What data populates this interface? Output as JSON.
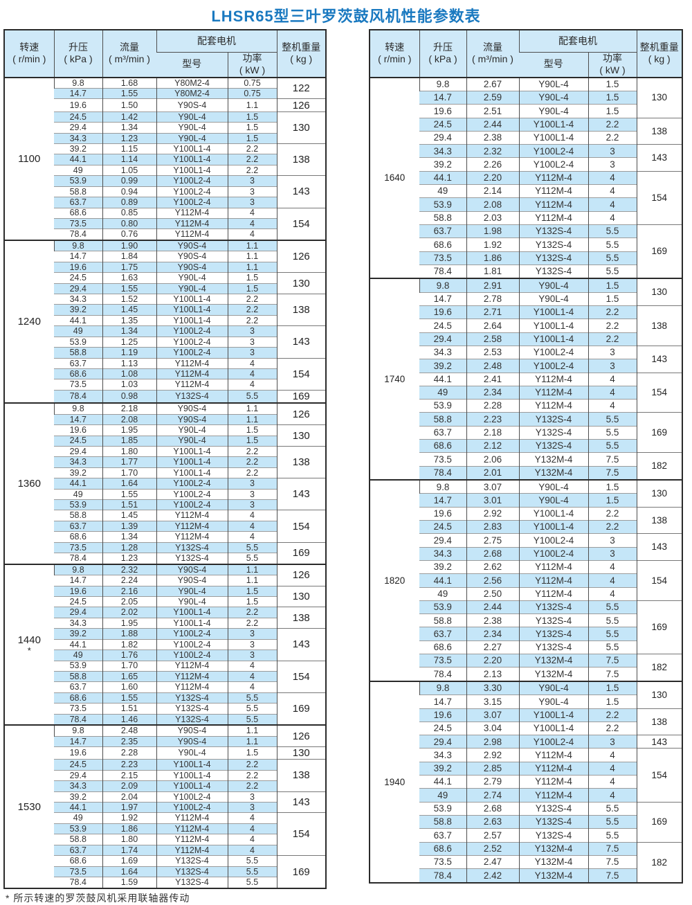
{
  "title": "LHSR65型三叶罗茨鼓风机性能参数表",
  "footnote": "* 所示转速的罗茨鼓风机采用联轴器传动",
  "colors": {
    "title_blue": "#1a79c0",
    "header_bg": "#cfe9f8",
    "row_alt_bg": "#c5e6f8"
  },
  "columns": {
    "speed_label": "转速",
    "speed_unit": "( r/min )",
    "pressure_label": "升压",
    "pressure_unit": "( kPa )",
    "flow_label": "流量",
    "flow_unit": "( m³/min )",
    "motor_group_label": "配套电机",
    "model_label": "型号",
    "power_label": "功率",
    "power_unit": "( kW )",
    "weight_label": "整机重量",
    "weight_unit": "( kg )"
  },
  "left_table": {
    "blocks": [
      {
        "speed": "1100",
        "note": "",
        "rows": [
          [
            "9.8",
            "1.68",
            "Y80M2-4",
            "0.75"
          ],
          [
            "14.7",
            "1.55",
            "Y80M2-4",
            "0.75"
          ],
          [
            "19.6",
            "1.50",
            "Y90S-4",
            "1.1"
          ],
          [
            "24.5",
            "1.42",
            "Y90L-4",
            "1.5"
          ],
          [
            "29.4",
            "1.34",
            "Y90L-4",
            "1.5"
          ],
          [
            "34.3",
            "1.23",
            "Y90L-4",
            "1.5"
          ],
          [
            "39.2",
            "1.15",
            "Y100L1-4",
            "2.2"
          ],
          [
            "44.1",
            "1.14",
            "Y100L1-4",
            "2.2"
          ],
          [
            "49",
            "1.05",
            "Y100L1-4",
            "2.2"
          ],
          [
            "53.9",
            "0.99",
            "Y100L2-4",
            "3"
          ],
          [
            "58.8",
            "0.94",
            "Y100L2-4",
            "3"
          ],
          [
            "63.7",
            "0.89",
            "Y100L2-4",
            "3"
          ],
          [
            "68.6",
            "0.85",
            "Y112M-4",
            "4"
          ],
          [
            "73.5",
            "0.80",
            "Y112M-4",
            "4"
          ],
          [
            "78.4",
            "0.76",
            "Y112M-4",
            "4"
          ]
        ],
        "weights": [
          [
            "122",
            2
          ],
          [
            "126",
            1
          ],
          [
            "130",
            3
          ],
          [
            "138",
            3
          ],
          [
            "143",
            3
          ],
          [
            "154",
            3
          ]
        ]
      },
      {
        "speed": "1240",
        "note": "",
        "rows": [
          [
            "9.8",
            "1.90",
            "Y90S-4",
            "1.1"
          ],
          [
            "14.7",
            "1.84",
            "Y90S-4",
            "1.1"
          ],
          [
            "19.6",
            "1.75",
            "Y90S-4",
            "1.1"
          ],
          [
            "24.5",
            "1.63",
            "Y90L-4",
            "1.5"
          ],
          [
            "29.4",
            "1.55",
            "Y90L-4",
            "1.5"
          ],
          [
            "34.3",
            "1.52",
            "Y100L1-4",
            "2.2"
          ],
          [
            "39.2",
            "1.45",
            "Y100L1-4",
            "2.2"
          ],
          [
            "44.1",
            "1.35",
            "Y100L1-4",
            "2.2"
          ],
          [
            "49",
            "1.34",
            "Y100L2-4",
            "3"
          ],
          [
            "53.9",
            "1.25",
            "Y100L2-4",
            "3"
          ],
          [
            "58.8",
            "1.19",
            "Y100L2-4",
            "3"
          ],
          [
            "63.7",
            "1.13",
            "Y112M-4",
            "4"
          ],
          [
            "68.6",
            "1.08",
            "Y112M-4",
            "4"
          ],
          [
            "73.5",
            "1.03",
            "Y112M-4",
            "4"
          ],
          [
            "78.4",
            "0.98",
            "Y132S-4",
            "5.5"
          ]
        ],
        "weights": [
          [
            "126",
            3
          ],
          [
            "130",
            2
          ],
          [
            "138",
            3
          ],
          [
            "143",
            3
          ],
          [
            "154",
            3
          ],
          [
            "169",
            1
          ]
        ]
      },
      {
        "speed": "1360",
        "note": "",
        "rows": [
          [
            "9.8",
            "2.18",
            "Y90S-4",
            "1.1"
          ],
          [
            "14.7",
            "2.08",
            "Y90S-4",
            "1.1"
          ],
          [
            "19.6",
            "1.95",
            "Y90L-4",
            "1.5"
          ],
          [
            "24.5",
            "1.85",
            "Y90L-4",
            "1.5"
          ],
          [
            "29.4",
            "1.80",
            "Y100L1-4",
            "2.2"
          ],
          [
            "34.3",
            "1.77",
            "Y100L1-4",
            "2.2"
          ],
          [
            "39.2",
            "1.70",
            "Y100L1-4",
            "2.2"
          ],
          [
            "44.1",
            "1.64",
            "Y100L2-4",
            "3"
          ],
          [
            "49",
            "1.55",
            "Y100L2-4",
            "3"
          ],
          [
            "53.9",
            "1.51",
            "Y100L2-4",
            "3"
          ],
          [
            "58.8",
            "1.45",
            "Y112M-4",
            "4"
          ],
          [
            "63.7",
            "1.39",
            "Y112M-4",
            "4"
          ],
          [
            "68.6",
            "1.34",
            "Y112M-4",
            "4"
          ],
          [
            "73.5",
            "1.28",
            "Y132S-4",
            "5.5"
          ],
          [
            "78.4",
            "1.23",
            "Y132S-4",
            "5.5"
          ]
        ],
        "weights": [
          [
            "126",
            2
          ],
          [
            "130",
            2
          ],
          [
            "138",
            3
          ],
          [
            "143",
            3
          ],
          [
            "154",
            3
          ],
          [
            "169",
            2
          ]
        ]
      },
      {
        "speed": "1440",
        "note": "*",
        "rows": [
          [
            "9.8",
            "2.32",
            "Y90S-4",
            "1.1"
          ],
          [
            "14.7",
            "2.24",
            "Y90S-4",
            "1.1"
          ],
          [
            "19.6",
            "2.16",
            "Y90L-4",
            "1.5"
          ],
          [
            "24.5",
            "2.05",
            "Y90L-4",
            "1.5"
          ],
          [
            "29.4",
            "2.02",
            "Y100L1-4",
            "2.2"
          ],
          [
            "34.3",
            "1.95",
            "Y100L1-4",
            "2.2"
          ],
          [
            "39.2",
            "1.88",
            "Y100L2-4",
            "3"
          ],
          [
            "44.1",
            "1.82",
            "Y100L2-4",
            "3"
          ],
          [
            "49",
            "1.76",
            "Y100L2-4",
            "3"
          ],
          [
            "53.9",
            "1.70",
            "Y112M-4",
            "4"
          ],
          [
            "58.8",
            "1.65",
            "Y112M-4",
            "4"
          ],
          [
            "63.7",
            "1.60",
            "Y112M-4",
            "4"
          ],
          [
            "68.6",
            "1.55",
            "Y132S-4",
            "5.5"
          ],
          [
            "73.5",
            "1.51",
            "Y132S-4",
            "5.5"
          ],
          [
            "78.4",
            "1.46",
            "Y132S-4",
            "5.5"
          ]
        ],
        "weights": [
          [
            "126",
            2
          ],
          [
            "130",
            2
          ],
          [
            "138",
            2
          ],
          [
            "143",
            3
          ],
          [
            "154",
            3
          ],
          [
            "169",
            3
          ]
        ]
      },
      {
        "speed": "1530",
        "note": "",
        "rows": [
          [
            "9.8",
            "2.48",
            "Y90S-4",
            "1.1"
          ],
          [
            "14.7",
            "2.35",
            "Y90S-4",
            "1.1"
          ],
          [
            "19.6",
            "2.28",
            "Y90L-4",
            "1.5"
          ],
          [
            "24.5",
            "2.23",
            "Y100L1-4",
            "2.2"
          ],
          [
            "29.4",
            "2.15",
            "Y100L1-4",
            "2.2"
          ],
          [
            "34.3",
            "2.09",
            "Y100L1-4",
            "2.2"
          ],
          [
            "39.2",
            "2.04",
            "Y100L2-4",
            "3"
          ],
          [
            "44.1",
            "1.97",
            "Y100L2-4",
            "3"
          ],
          [
            "49",
            "1.92",
            "Y112M-4",
            "4"
          ],
          [
            "53.9",
            "1.86",
            "Y112M-4",
            "4"
          ],
          [
            "58.8",
            "1.80",
            "Y112M-4",
            "4"
          ],
          [
            "63.7",
            "1.74",
            "Y112M-4",
            "4"
          ],
          [
            "68.6",
            "1.69",
            "Y132S-4",
            "5.5"
          ],
          [
            "73.5",
            "1.64",
            "Y132S-4",
            "5.5"
          ],
          [
            "78.4",
            "1.59",
            "Y132S-4",
            "5.5"
          ]
        ],
        "weights": [
          [
            "126",
            2
          ],
          [
            "130",
            1
          ],
          [
            "138",
            3
          ],
          [
            "143",
            2
          ],
          [
            "154",
            4
          ],
          [
            "169",
            3
          ]
        ]
      }
    ]
  },
  "right_table": {
    "blocks": [
      {
        "speed": "1640",
        "note": "",
        "rows": [
          [
            "9.8",
            "2.67",
            "Y90L-4",
            "1.5"
          ],
          [
            "14.7",
            "2.59",
            "Y90L-4",
            "1.5"
          ],
          [
            "19.6",
            "2.51",
            "Y90L-4",
            "1.5"
          ],
          [
            "24.5",
            "2.44",
            "Y100L1-4",
            "2.2"
          ],
          [
            "29.4",
            "2.38",
            "Y100L1-4",
            "2.2"
          ],
          [
            "34.3",
            "2.32",
            "Y100L2-4",
            "3"
          ],
          [
            "39.2",
            "2.26",
            "Y100L2-4",
            "3"
          ],
          [
            "44.1",
            "2.20",
            "Y112M-4",
            "4"
          ],
          [
            "49",
            "2.14",
            "Y112M-4",
            "4"
          ],
          [
            "53.9",
            "2.08",
            "Y112M-4",
            "4"
          ],
          [
            "58.8",
            "2.03",
            "Y112M-4",
            "4"
          ],
          [
            "63.7",
            "1.98",
            "Y132S-4",
            "5.5"
          ],
          [
            "68.6",
            "1.92",
            "Y132S-4",
            "5.5"
          ],
          [
            "73.5",
            "1.86",
            "Y132S-4",
            "5.5"
          ],
          [
            "78.4",
            "1.81",
            "Y132S-4",
            "5.5"
          ]
        ],
        "weights": [
          [
            "130",
            3
          ],
          [
            "138",
            2
          ],
          [
            "143",
            2
          ],
          [
            "154",
            4
          ],
          [
            "169",
            4
          ]
        ]
      },
      {
        "speed": "1740",
        "note": "",
        "rows": [
          [
            "9.8",
            "2.91",
            "Y90L-4",
            "1.5"
          ],
          [
            "14.7",
            "2.78",
            "Y90L-4",
            "1.5"
          ],
          [
            "19.6",
            "2.71",
            "Y100L1-4",
            "2.2"
          ],
          [
            "24.5",
            "2.64",
            "Y100L1-4",
            "2.2"
          ],
          [
            "29.4",
            "2.58",
            "Y100L1-4",
            "2.2"
          ],
          [
            "34.3",
            "2.53",
            "Y100L2-4",
            "3"
          ],
          [
            "39.2",
            "2.48",
            "Y100L2-4",
            "3"
          ],
          [
            "44.1",
            "2.41",
            "Y112M-4",
            "4"
          ],
          [
            "49",
            "2.34",
            "Y112M-4",
            "4"
          ],
          [
            "53.9",
            "2.28",
            "Y112M-4",
            "4"
          ],
          [
            "58.8",
            "2.23",
            "Y132S-4",
            "5.5"
          ],
          [
            "63.7",
            "2.18",
            "Y132S-4",
            "5.5"
          ],
          [
            "68.6",
            "2.12",
            "Y132S-4",
            "5.5"
          ],
          [
            "73.5",
            "2.06",
            "Y132M-4",
            "7.5"
          ],
          [
            "78.4",
            "2.01",
            "Y132M-4",
            "7.5"
          ]
        ],
        "weights": [
          [
            "130",
            2
          ],
          [
            "138",
            3
          ],
          [
            "143",
            2
          ],
          [
            "154",
            3
          ],
          [
            "169",
            3
          ],
          [
            "182",
            2
          ]
        ]
      },
      {
        "speed": "1820",
        "note": "",
        "rows": [
          [
            "9.8",
            "3.07",
            "Y90L-4",
            "1.5"
          ],
          [
            "14.7",
            "3.01",
            "Y90L-4",
            "1.5"
          ],
          [
            "19.6",
            "2.92",
            "Y100L1-4",
            "2.2"
          ],
          [
            "24.5",
            "2.83",
            "Y100L1-4",
            "2.2"
          ],
          [
            "29.4",
            "2.75",
            "Y100L2-4",
            "3"
          ],
          [
            "34.3",
            "2.68",
            "Y100L2-4",
            "3"
          ],
          [
            "39.2",
            "2.62",
            "Y112M-4",
            "4"
          ],
          [
            "44.1",
            "2.56",
            "Y112M-4",
            "4"
          ],
          [
            "49",
            "2.50",
            "Y112M-4",
            "4"
          ],
          [
            "53.9",
            "2.44",
            "Y132S-4",
            "5.5"
          ],
          [
            "58.8",
            "2.38",
            "Y132S-4",
            "5.5"
          ],
          [
            "63.7",
            "2.34",
            "Y132S-4",
            "5.5"
          ],
          [
            "68.6",
            "2.27",
            "Y132S-4",
            "5.5"
          ],
          [
            "73.5",
            "2.20",
            "Y132M-4",
            "7.5"
          ],
          [
            "78.4",
            "2.13",
            "Y132M-4",
            "7.5"
          ]
        ],
        "weights": [
          [
            "130",
            2
          ],
          [
            "138",
            2
          ],
          [
            "143",
            2
          ],
          [
            "154",
            3
          ],
          [
            "169",
            4
          ],
          [
            "182",
            2
          ]
        ]
      },
      {
        "speed": "1940",
        "note": "",
        "rows": [
          [
            "9.8",
            "3.30",
            "Y90L-4",
            "1.5"
          ],
          [
            "14.7",
            "3.15",
            "Y90L-4",
            "1.5"
          ],
          [
            "19.6",
            "3.07",
            "Y100L1-4",
            "2.2"
          ],
          [
            "24.5",
            "3.04",
            "Y100L1-4",
            "2.2"
          ],
          [
            "29.4",
            "2.98",
            "Y100L2-4",
            "3"
          ],
          [
            "34.3",
            "2.92",
            "Y112M-4",
            "4"
          ],
          [
            "39.2",
            "2.85",
            "Y112M-4",
            "4"
          ],
          [
            "44.1",
            "2.79",
            "Y112M-4",
            "4"
          ],
          [
            "49",
            "2.74",
            "Y112M-4",
            "4"
          ],
          [
            "53.9",
            "2.68",
            "Y132S-4",
            "5.5"
          ],
          [
            "58.8",
            "2.63",
            "Y132S-4",
            "5.5"
          ],
          [
            "63.7",
            "2.57",
            "Y132S-4",
            "5.5"
          ],
          [
            "68.6",
            "2.52",
            "Y132M-4",
            "7.5"
          ],
          [
            "73.5",
            "2.47",
            "Y132M-4",
            "7.5"
          ],
          [
            "78.4",
            "2.42",
            "Y132M-4",
            "7.5"
          ]
        ],
        "weights": [
          [
            "130",
            2
          ],
          [
            "138",
            2
          ],
          [
            "143",
            1
          ],
          [
            "154",
            4
          ],
          [
            "169",
            3
          ],
          [
            "182",
            3
          ]
        ]
      }
    ]
  }
}
